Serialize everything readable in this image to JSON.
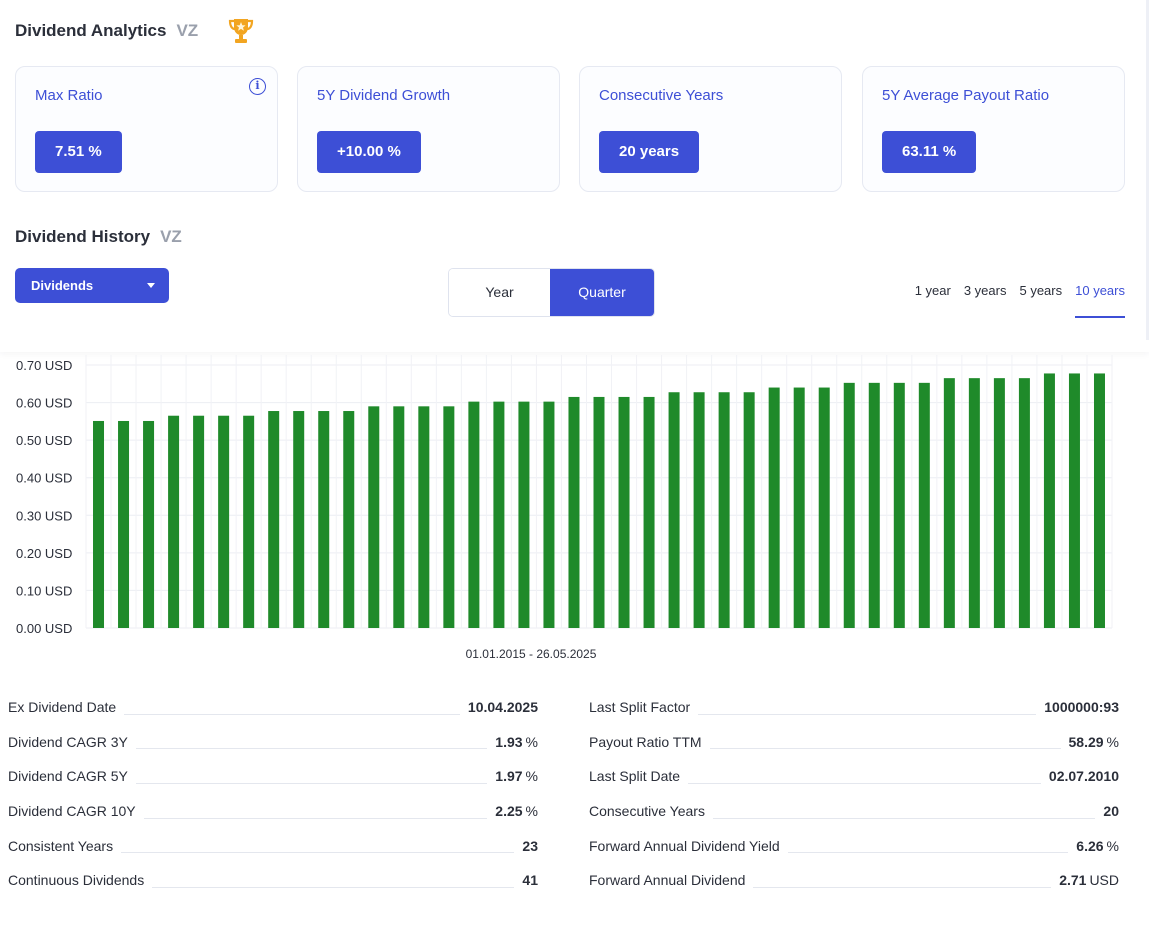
{
  "analytics": {
    "title": "Dividend Analytics",
    "ticker": "VZ",
    "cards": [
      {
        "label": "Max Ratio",
        "value": "7.51 %"
      },
      {
        "label": "5Y Dividend Growth",
        "value": "+10.00 %"
      },
      {
        "label": "Consecutive Years",
        "value": "20 years"
      },
      {
        "label": "5Y Average Payout Ratio",
        "value": "63.11 %"
      }
    ],
    "info_glyph": "i"
  },
  "history": {
    "title": "Dividend History",
    "ticker": "VZ",
    "dropdown_label": "Dividends",
    "toggle": {
      "year": "Year",
      "quarter": "Quarter",
      "active": "quarter"
    },
    "ranges": [
      "1 year",
      "3 years",
      "5 years",
      "10 years"
    ],
    "active_range": "10 years"
  },
  "chart_data": {
    "type": "bar",
    "xlabel": "01.01.2015 - 26.05.2025",
    "ylabel": "",
    "ylim": [
      0,
      0.7
    ],
    "y_ticks": [
      "0.00 USD",
      "0.10 USD",
      "0.20 USD",
      "0.30 USD",
      "0.40 USD",
      "0.50 USD",
      "0.60 USD",
      "0.70 USD"
    ],
    "values": [
      0.551,
      0.551,
      0.551,
      0.565,
      0.565,
      0.565,
      0.565,
      0.5775,
      0.5775,
      0.5775,
      0.5775,
      0.59,
      0.59,
      0.59,
      0.59,
      0.6025,
      0.6025,
      0.6025,
      0.6025,
      0.615,
      0.615,
      0.615,
      0.615,
      0.6275,
      0.6275,
      0.6275,
      0.6275,
      0.64,
      0.64,
      0.64,
      0.6525,
      0.6525,
      0.6525,
      0.6525,
      0.665,
      0.665,
      0.665,
      0.665,
      0.6775,
      0.6775,
      0.6775
    ],
    "bar_color": "#1f8a2a",
    "grid": true
  },
  "stats_left": [
    {
      "label": "Ex Dividend Date",
      "value": "10.04.2025",
      "unit": ""
    },
    {
      "label": "Dividend CAGR 3Y",
      "value": "1.93",
      "unit": "%"
    },
    {
      "label": "Dividend CAGR 5Y",
      "value": "1.97",
      "unit": "%"
    },
    {
      "label": "Dividend CAGR 10Y",
      "value": "2.25",
      "unit": "%"
    },
    {
      "label": "Consistent Years",
      "value": "23",
      "unit": ""
    },
    {
      "label": "Continuous Dividends",
      "value": "41",
      "unit": ""
    }
  ],
  "stats_right": [
    {
      "label": "Last Split Factor",
      "value": "1000000:93",
      "unit": ""
    },
    {
      "label": "Payout Ratio TTM",
      "value": "58.29",
      "unit": "%"
    },
    {
      "label": "Last Split Date",
      "value": "02.07.2010",
      "unit": ""
    },
    {
      "label": "Consecutive Years",
      "value": "20",
      "unit": ""
    },
    {
      "label": "Forward Annual Dividend Yield",
      "value": "6.26",
      "unit": "%"
    },
    {
      "label": "Forward Annual Dividend",
      "value": "2.71",
      "unit": "USD"
    }
  ],
  "colors": {
    "accent": "#3d4fd6",
    "trophy": "#f2a521",
    "bar": "#1f8a2a"
  },
  "icons": {
    "trophy": "trophy-icon",
    "info": "info-icon",
    "caret": "caret-down-icon"
  }
}
